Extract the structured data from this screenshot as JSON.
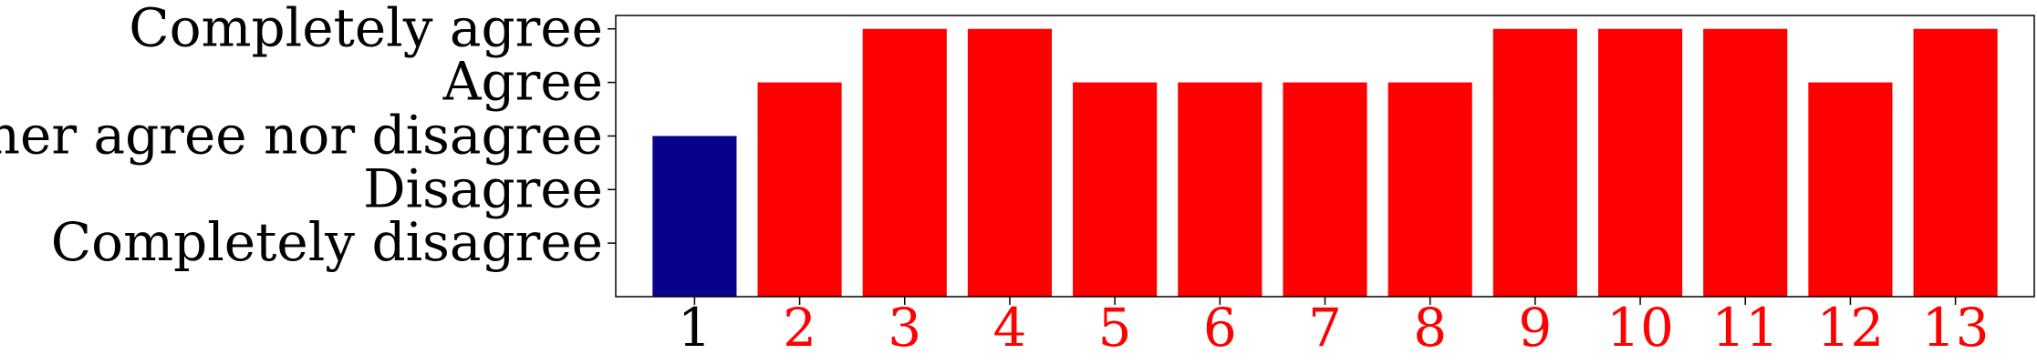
{
  "chart_data": {
    "type": "bar",
    "categories": [
      "1",
      "2",
      "3",
      "4",
      "5",
      "6",
      "7",
      "8",
      "9",
      "10",
      "11",
      "12",
      "13"
    ],
    "values": [
      3,
      4,
      5,
      5,
      4,
      4,
      4,
      4,
      5,
      5,
      5,
      4,
      5
    ],
    "bar_colors": [
      "#06038a",
      "#ff0000",
      "#ff0000",
      "#ff0000",
      "#ff0000",
      "#ff0000",
      "#ff0000",
      "#ff0000",
      "#ff0000",
      "#ff0000",
      "#ff0000",
      "#ff0000",
      "#ff0000"
    ],
    "xtick_colors": [
      "#000000",
      "#ff0000",
      "#ff0000",
      "#ff0000",
      "#ff0000",
      "#ff0000",
      "#ff0000",
      "#ff0000",
      "#ff0000",
      "#ff0000",
      "#ff0000",
      "#ff0000",
      "#ff0000"
    ],
    "yticks": [
      1,
      2,
      3,
      4,
      5
    ],
    "ytick_labels": [
      "Completely disagree",
      "Disagree",
      "Neither agree nor disagree",
      "Agree",
      "Completely agree"
    ],
    "ylim": [
      0,
      5.25
    ],
    "title": "",
    "xlabel": "",
    "ylabel": "",
    "grid": false
  }
}
